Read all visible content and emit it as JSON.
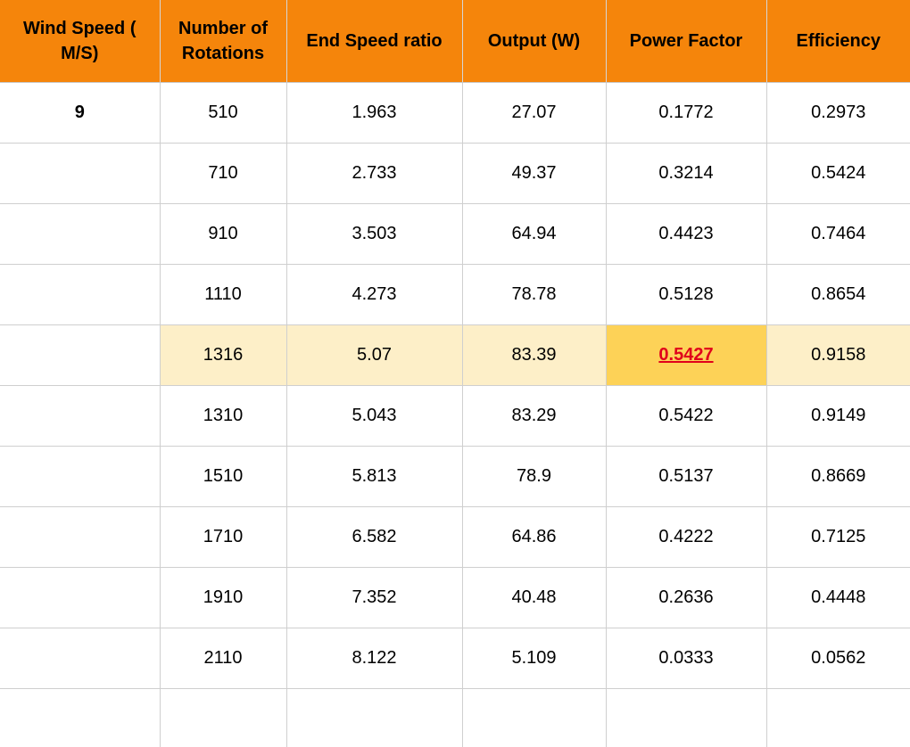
{
  "table": {
    "headers": [
      "Wind Speed ( M/S)",
      "Number of Rotations",
      "End Speed ratio",
      "Output (W)",
      "Power Factor",
      "Efficiency"
    ],
    "rows": [
      [
        "9",
        "510",
        "1.963",
        "27.07",
        "0.1772",
        "0.2973"
      ],
      [
        "",
        "710",
        "2.733",
        "49.37",
        "0.3214",
        "0.5424"
      ],
      [
        "",
        "910",
        "3.503",
        "64.94",
        "0.4423",
        "0.7464"
      ],
      [
        "",
        "1110",
        "4.273",
        "78.78",
        "0.5128",
        "0.8654"
      ],
      [
        "",
        "1316",
        "5.07",
        "83.39",
        "0.5427",
        "0.9158"
      ],
      [
        "",
        "1310",
        "5.043",
        "83.29",
        "0.5422",
        "0.9149"
      ],
      [
        "",
        "1510",
        "5.813",
        "78.9",
        "0.5137",
        "0.8669"
      ],
      [
        "",
        "1710",
        "6.582",
        "64.86",
        "0.4222",
        "0.7125"
      ],
      [
        "",
        "1910",
        "7.352",
        "40.48",
        "0.2636",
        "0.4448"
      ],
      [
        "",
        "2110",
        "8.122",
        "5.109",
        "0.0333",
        "0.0562"
      ],
      [
        "",
        "",
        "",
        "",
        "",
        ""
      ]
    ],
    "highlight_row_index": 4,
    "peak_column_index": 4
  },
  "colors": {
    "header_bg": "#f5850b",
    "highlight_row_bg": "#fdefc8",
    "peak_cell_bg": "#fdd257",
    "peak_text": "#e0001b"
  }
}
